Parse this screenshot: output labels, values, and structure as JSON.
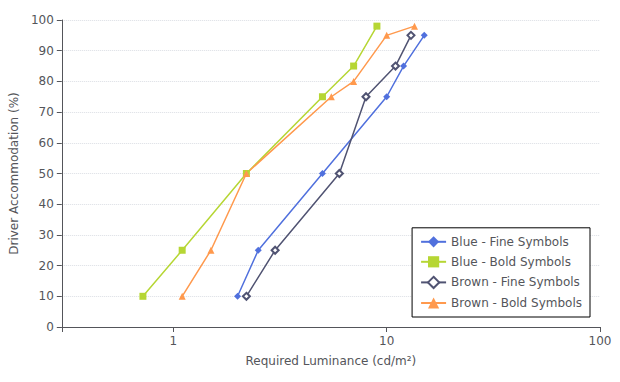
{
  "chart_data": {
    "type": "line",
    "xlabel": "Required Luminance (cd/m²)",
    "ylabel": "Driver Accommodation (%)",
    "log": "x",
    "xlim": [
      0.3,
      100
    ],
    "xticks": [
      1,
      10,
      100
    ],
    "ylim": [
      0,
      100
    ],
    "yticks": [
      0,
      10,
      20,
      30,
      40,
      50,
      60,
      70,
      80,
      90,
      100
    ],
    "grid": true,
    "legend": "lower right",
    "series": [
      {
        "name": "Blue - Fine Symbols",
        "marker": "diamond",
        "x": [
          2.0,
          2.5,
          5.0,
          10.0,
          12.0,
          15.0
        ],
        "values": [
          10,
          25,
          50,
          75,
          85,
          95
        ]
      },
      {
        "name": "Blue - Bold Symbols",
        "marker": "square",
        "x": [
          0.72,
          1.1,
          2.2,
          5.0,
          7.0,
          9.0
        ],
        "values": [
          10,
          25,
          50,
          75,
          85,
          98
        ]
      },
      {
        "name": "Brown - Fine Symbols",
        "marker": "hollow_diamond",
        "x": [
          2.2,
          3.0,
          6.0,
          8.0,
          11.0,
          13.0
        ],
        "values": [
          10,
          25,
          50,
          75,
          85,
          95
        ]
      },
      {
        "name": "Brown - Bold Symbols",
        "marker": "triangle",
        "x": [
          1.1,
          1.5,
          2.2,
          5.5,
          7.0,
          10.0,
          13.5
        ],
        "values": [
          10,
          25,
          50,
          75,
          80,
          95,
          98
        ]
      }
    ]
  }
}
